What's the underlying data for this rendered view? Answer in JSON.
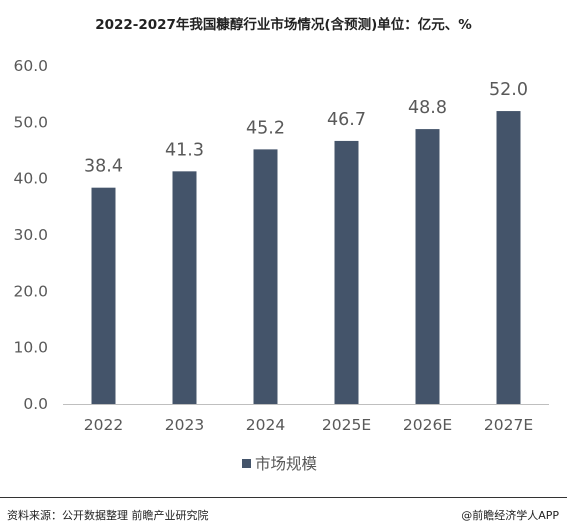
{
  "title": "2022-2027年我国糠醇行业市场情况(含预测)单位：亿元、%",
  "chart_data": {
    "type": "bar",
    "categories": [
      "2022",
      "2023",
      "2024",
      "2025E",
      "2026E",
      "2027E"
    ],
    "series": [
      {
        "name": "市场规模",
        "values": [
          38.4,
          41.3,
          45.2,
          46.7,
          48.8,
          52.0
        ],
        "color": "#44546A"
      }
    ],
    "value_labels": [
      "38.4",
      "41.3",
      "45.2",
      "46.7",
      "48.8",
      "52.0"
    ],
    "yticks": [
      "0.0",
      "10.0",
      "20.0",
      "30.0",
      "40.0",
      "50.0",
      "60.0"
    ],
    "ylim": [
      0,
      60
    ],
    "grid": false,
    "legend_position": "bottom"
  },
  "footer": {
    "source": "资料来源：公开数据整理 前瞻产业研究院",
    "brand": "@前瞻经济学人APP"
  }
}
